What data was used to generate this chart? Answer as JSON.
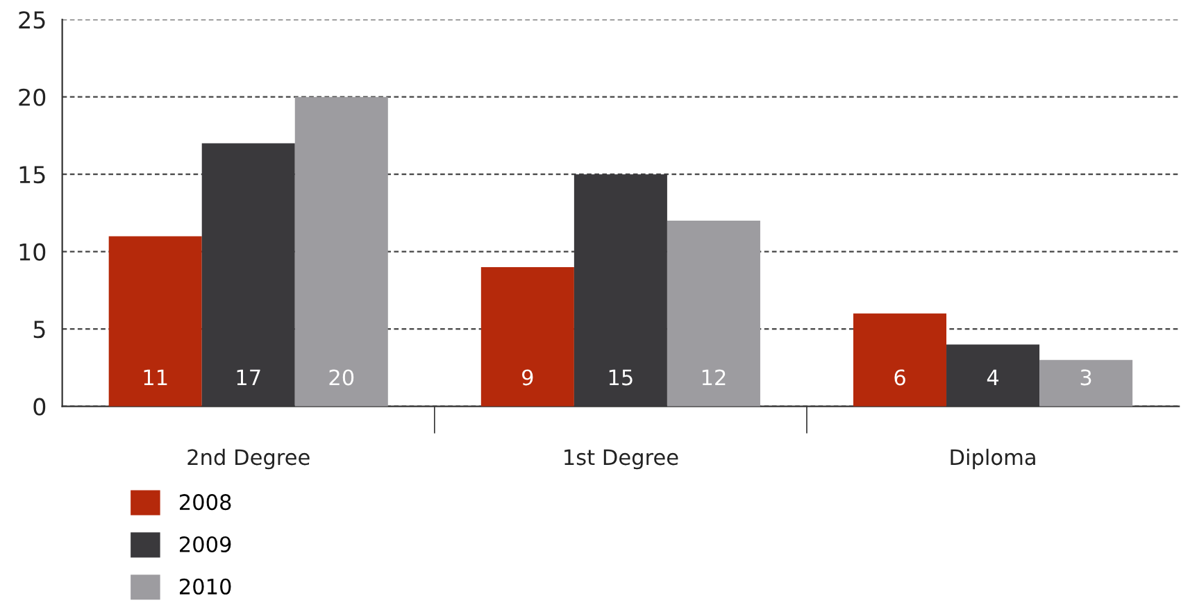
{
  "chart_data": {
    "type": "bar",
    "categories": [
      "2nd Degree",
      "1st Degree",
      "Diploma"
    ],
    "series": [
      {
        "name": "2008",
        "color": "#b5290b",
        "values": [
          11,
          9,
          6
        ]
      },
      {
        "name": "2009",
        "color": "#3a393c",
        "values": [
          17,
          15,
          4
        ]
      },
      {
        "name": "2010",
        "color": "#9d9ca0",
        "values": [
          20,
          12,
          3
        ]
      }
    ],
    "ylim": [
      0,
      25
    ],
    "yticks": [
      0,
      5,
      10,
      15,
      20,
      25
    ],
    "grid": "y",
    "legend": "bottom left",
    "data_labels": true
  }
}
